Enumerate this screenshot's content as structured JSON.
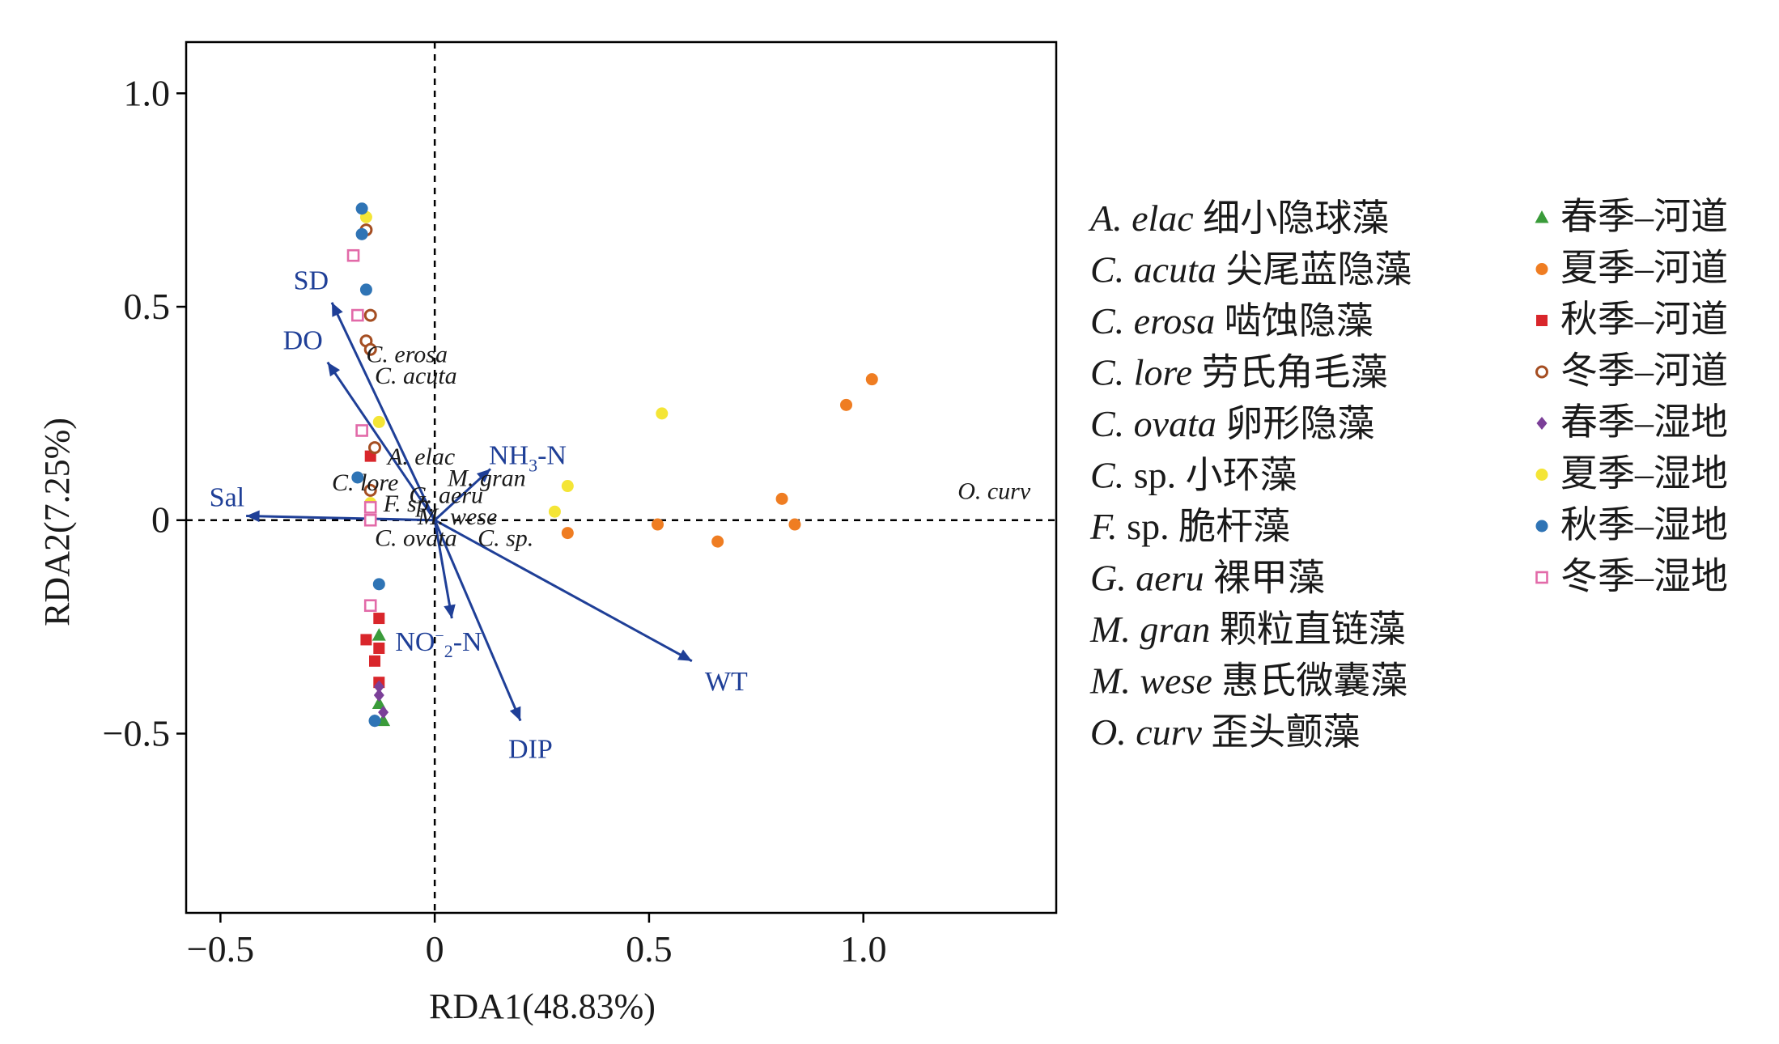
{
  "chart_data": {
    "type": "scatter",
    "xlabel": "RDA1(48.83%)",
    "ylabel": "RDA2(7.25%)",
    "xlim": [
      -0.58,
      1.45
    ],
    "ylim": [
      -0.92,
      1.12
    ],
    "xticks": [
      {
        "value": -0.5,
        "label": "−0.5"
      },
      {
        "value": 0,
        "label": "0"
      },
      {
        "value": 0.5,
        "label": "0.5"
      },
      {
        "value": 1.0,
        "label": "1.0"
      }
    ],
    "yticks": [
      {
        "value": 1.0,
        "label": "1.0"
      },
      {
        "value": 0.5,
        "label": "0.5"
      },
      {
        "value": 0,
        "label": "0"
      },
      {
        "value": -0.5,
        "label": "−0.5"
      }
    ],
    "zero_lines": true,
    "grid": false,
    "legend_position": "right",
    "arrow_color": "#1f3f97",
    "vectors": [
      {
        "label": "SD",
        "x": -0.24,
        "y": 0.51
      },
      {
        "label": "DO",
        "x": -0.25,
        "y": 0.37
      },
      {
        "label": "Sal",
        "x": -0.44,
        "y": 0.01
      },
      {
        "label": "NH3-N",
        "label_main": "NH",
        "label_sub": "3",
        "label_tail": "-N",
        "x": 0.13,
        "y": 0.12
      },
      {
        "label": "NO2-N",
        "label_main": "NO",
        "label_sub": "2",
        "label_sup": "−",
        "label_tail": "-N",
        "x": 0.04,
        "y": -0.23
      },
      {
        "label": "DIP",
        "x": 0.2,
        "y": -0.47
      },
      {
        "label": "WT",
        "x": 0.6,
        "y": -0.33
      }
    ],
    "species": [
      {
        "label": "C. erosa",
        "x": -0.16,
        "y": 0.37
      },
      {
        "label": "C. acuta",
        "x": -0.14,
        "y": 0.32
      },
      {
        "label": "A. elac",
        "x": -0.11,
        "y": 0.13
      },
      {
        "label": "M. gran",
        "x": 0.03,
        "y": 0.08
      },
      {
        "label": "C. lore",
        "x": -0.24,
        "y": 0.07
      },
      {
        "label": "G. aeru",
        "x": -0.06,
        "y": 0.04
      },
      {
        "label": "F. sp.",
        "x": -0.12,
        "y": 0.02
      },
      {
        "label": "M. wese",
        "x": -0.04,
        "y": -0.01
      },
      {
        "label": "C. ovata",
        "x": -0.14,
        "y": -0.06
      },
      {
        "label": "C. sp.",
        "x": 0.1,
        "y": -0.06
      },
      {
        "label": "O. curv",
        "x": 1.22,
        "y": 0.05
      }
    ],
    "series": [
      {
        "name": "春季–河道",
        "marker": "triangle",
        "color": "#3a9b3a",
        "points": [
          [
            -0.13,
            -0.27
          ],
          [
            -0.12,
            -0.47
          ],
          [
            -0.13,
            -0.43
          ]
        ]
      },
      {
        "name": "夏季–河道",
        "marker": "circle",
        "color": "#ef7d22",
        "points": [
          [
            1.02,
            0.33
          ],
          [
            0.96,
            0.27
          ],
          [
            0.81,
            0.05
          ],
          [
            0.84,
            -0.01
          ],
          [
            0.52,
            -0.01
          ],
          [
            0.66,
            -0.05
          ],
          [
            0.31,
            -0.03
          ]
        ]
      },
      {
        "name": "秋季–河道",
        "marker": "square",
        "color": "#d9262b",
        "points": [
          [
            -0.15,
            0.15
          ],
          [
            -0.13,
            -0.23
          ],
          [
            -0.16,
            -0.28
          ],
          [
            -0.13,
            -0.3
          ],
          [
            -0.14,
            -0.33
          ],
          [
            -0.13,
            -0.38
          ]
        ]
      },
      {
        "name": "冬季–河道",
        "marker": "open-circle",
        "color": "#a54e22",
        "points": [
          [
            -0.16,
            0.68
          ],
          [
            -0.15,
            0.48
          ],
          [
            -0.16,
            0.42
          ],
          [
            -0.15,
            0.4
          ],
          [
            -0.14,
            0.17
          ],
          [
            -0.15,
            0.07
          ]
        ]
      },
      {
        "name": "春季–湿地",
        "marker": "diamond",
        "color": "#7b3f98",
        "points": [
          [
            -0.13,
            -0.41
          ],
          [
            -0.12,
            -0.45
          ],
          [
            -0.14,
            -0.47
          ],
          [
            -0.13,
            -0.39
          ]
        ]
      },
      {
        "name": "夏季–湿地",
        "marker": "circle",
        "color": "#f4e536",
        "points": [
          [
            -0.16,
            0.71
          ],
          [
            0.53,
            0.25
          ],
          [
            0.31,
            0.08
          ],
          [
            0.28,
            0.02
          ],
          [
            -0.13,
            0.23
          ],
          [
            -0.15,
            0.04
          ]
        ]
      },
      {
        "name": "秋季–湿地",
        "marker": "circle",
        "color": "#2f74b5",
        "points": [
          [
            -0.17,
            0.73
          ],
          [
            -0.17,
            0.67
          ],
          [
            -0.16,
            0.54
          ],
          [
            -0.18,
            0.1
          ],
          [
            -0.13,
            -0.15
          ],
          [
            -0.14,
            -0.47
          ]
        ]
      },
      {
        "name": "冬季–湿地",
        "marker": "open-square",
        "color": "#e26aa8",
        "points": [
          [
            -0.19,
            0.62
          ],
          [
            -0.18,
            0.48
          ],
          [
            -0.17,
            0.21
          ],
          [
            -0.15,
            0.03
          ],
          [
            -0.15,
            0.0
          ],
          [
            -0.15,
            -0.2
          ]
        ]
      }
    ],
    "species_legend": [
      {
        "abbr": "A. elac",
        "name": "细小隐球藻"
      },
      {
        "abbr": "C. acuta",
        "name": "尖尾蓝隐藻"
      },
      {
        "abbr": "C. erosa",
        "name": "啮蚀隐藻"
      },
      {
        "abbr": "C. lore",
        "name": "劳氏角毛藻"
      },
      {
        "abbr": "C. ovata",
        "name": "卵形隐藻"
      },
      {
        "abbr": "C.",
        "abbr_plain": " sp.",
        "name": "小环藻"
      },
      {
        "abbr": "F.",
        "abbr_plain": " sp.",
        "name": "脆杆藻"
      },
      {
        "abbr": "G. aeru",
        "name": "裸甲藻"
      },
      {
        "abbr": "M. gran",
        "name": "颗粒直链藻"
      },
      {
        "abbr": "M. wese",
        "name": "惠氏微囊藻"
      },
      {
        "abbr": "O. curv",
        "name": "歪头颤藻"
      }
    ]
  }
}
